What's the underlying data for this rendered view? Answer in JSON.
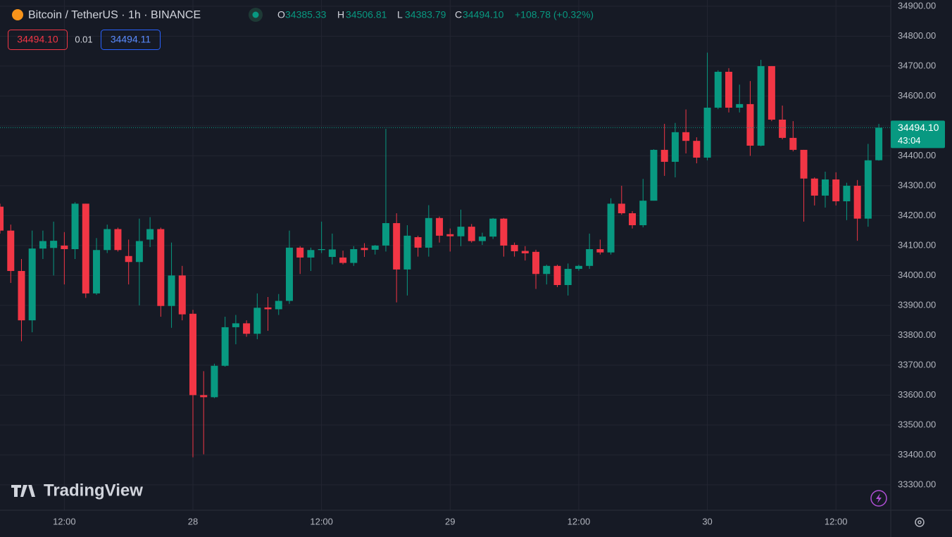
{
  "header": {
    "symbol": "Bitcoin / TetherUS · 1h · BINANCE",
    "ohlc": [
      {
        "label": "O",
        "value": "34385.33"
      },
      {
        "label": "H",
        "value": "34506.81"
      },
      {
        "label": "L",
        "value": "34383.79"
      },
      {
        "label": "C",
        "value": "34494.10"
      }
    ],
    "change": "+108.78 (+0.32%)"
  },
  "order": {
    "sell": "34494.10",
    "spread": "0.01",
    "buy": "34494.11"
  },
  "watermark": "TradingView",
  "chart_data": {
    "type": "candlestick",
    "categories": [
      null,
      null,
      null,
      null,
      null,
      null,
      "12:00",
      null,
      null,
      null,
      null,
      null,
      null,
      null,
      null,
      null,
      null,
      null,
      "28",
      null,
      null,
      null,
      null,
      null,
      null,
      null,
      null,
      null,
      null,
      null,
      "12:00",
      null,
      null,
      null,
      null,
      null,
      null,
      null,
      null,
      null,
      null,
      null,
      "29",
      null,
      null,
      null,
      null,
      null,
      null,
      null,
      null,
      null,
      null,
      null,
      "12:00",
      null,
      null,
      null,
      null,
      null,
      null,
      null,
      null,
      null,
      null,
      null,
      "30",
      null,
      null,
      null,
      null,
      null,
      null,
      null,
      null,
      null,
      null,
      null,
      "12:00",
      null,
      null,
      null,
      null
    ],
    "open": [
      34230,
      34150,
      34015,
      33850,
      34090,
      34092,
      34100,
      34088,
      34240,
      33940,
      34085,
      34155,
      34065,
      34045,
      34120,
      34155,
      33898,
      34000,
      33872,
      33600,
      33593,
      33698,
      33827,
      33840,
      33805,
      33893,
      33887,
      33915,
      34093,
      34060,
      34085,
      34062,
      34060,
      34042,
      34092,
      34086,
      34100,
      34175,
      34020,
      34128,
      34093,
      34192,
      34138,
      34131,
      34163,
      34115,
      34130,
      34190,
      34102,
      34082,
      34079,
      34005,
      34032,
      33968,
      34022,
      34032,
      34088,
      34077,
      34240,
      34208,
      34168,
      34250,
      34420,
      34380,
      34479,
      34450,
      34394,
      34561,
      34681,
      34561,
      34573,
      34434,
      34700,
      34521,
      34460,
      34420,
      34324,
      34267,
      34321,
      34248,
      34300,
      34190,
      34385.33
    ],
    "high": [
      34240,
      34170,
      34055,
      34150,
      34150,
      34180,
      34145,
      34245,
      34240,
      34125,
      34170,
      34160,
      34120,
      34190,
      34195,
      34160,
      34110,
      34032,
      33885,
      33680,
      33705,
      33862,
      33868,
      33850,
      33940,
      33928,
      33938,
      34150,
      34098,
      34093,
      34180,
      34140,
      34083,
      34098,
      34108,
      34102,
      34490,
      34208,
      34168,
      34133,
      34235,
      34197,
      34157,
      34220,
      34172,
      34143,
      34192,
      34192,
      34110,
      34098,
      34086,
      34036,
      34036,
      34040,
      34036,
      34140,
      34120,
      34258,
      34300,
      34215,
      34323,
      34422,
      34507,
      34510,
      34555,
      34462,
      34745,
      34686,
      34693,
      34638,
      34650,
      34721,
      34700,
      34568,
      34516,
      34420,
      34328,
      34347,
      34345,
      34310,
      34319,
      34440,
      34506.81
    ],
    "low": [
      34140,
      33975,
      33780,
      33810,
      34055,
      34000,
      33970,
      34055,
      33925,
      33935,
      34075,
      34080,
      33970,
      33900,
      34095,
      33862,
      33825,
      33850,
      33392,
      33402,
      33590,
      33695,
      33770,
      33795,
      33787,
      33815,
      33868,
      33905,
      34005,
      34015,
      34075,
      34037,
      34037,
      34032,
      34062,
      34070,
      34080,
      33910,
      33933,
      34063,
      34063,
      34110,
      34080,
      34098,
      34110,
      34102,
      34122,
      34063,
      34063,
      34050,
      33955,
      33970,
      33961,
      33933,
      34016,
      34022,
      34070,
      34070,
      34203,
      34157,
      34161,
      34250,
      34333,
      34328,
      34408,
      34375,
      34385,
      34556,
      34545,
      34545,
      34400,
      34432,
      34516,
      34455,
      34415,
      34180,
      34234,
      34227,
      34234,
      34185,
      34116,
      34163,
      34383.79
    ],
    "close": [
      34150,
      34015,
      33850,
      34090,
      34115,
      34116,
      34088,
      34240,
      33940,
      34085,
      34155,
      34085,
      34045,
      34115,
      34155,
      33898,
      34000,
      33870,
      33600,
      33593,
      33698,
      33827,
      33840,
      33805,
      33892,
      33887,
      33915,
      34093,
      34060,
      34085,
      34088,
      34087,
      34042,
      34088,
      34085,
      34100,
      34175,
      34020,
      34133,
      34093,
      34192,
      34133,
      34131,
      34163,
      34115,
      34130,
      34190,
      34100,
      34081,
      34074,
      34005,
      34032,
      33968,
      34022,
      34032,
      34088,
      34077,
      34240,
      34208,
      34168,
      34250,
      34420,
      34380,
      34479,
      34450,
      34394,
      34561,
      34681,
      34561,
      34573,
      34434,
      34700,
      34521,
      34460,
      34420,
      34324,
      34267,
      34321,
      34248,
      34300,
      34190,
      34385,
      34494.1
    ],
    "up_color": "#089981",
    "down_color": "#f23645",
    "ylim": [
      33215,
      34921
    ],
    "yticks": [
      {
        "value": 33300,
        "label": "33300.00"
      },
      {
        "value": 33400,
        "label": "33400.00"
      },
      {
        "value": 33500,
        "label": "33500.00"
      },
      {
        "value": 33600,
        "label": "33600.00"
      },
      {
        "value": 33700,
        "label": "33700.00"
      },
      {
        "value": 33800,
        "label": "33800.00"
      },
      {
        "value": 33900,
        "label": "33900.00"
      },
      {
        "value": 34000,
        "label": "34000.00"
      },
      {
        "value": 34100,
        "label": "34100.00"
      },
      {
        "value": 34200,
        "label": "34200.00"
      },
      {
        "value": 34300,
        "label": "34300.00"
      },
      {
        "value": 34400,
        "label": "34400.00"
      },
      {
        "value": 34500,
        "label": "34500.00"
      },
      {
        "value": 34600,
        "label": "34600.00"
      },
      {
        "value": 34700,
        "label": "34700.00"
      },
      {
        "value": 34800,
        "label": "34800.00"
      },
      {
        "value": 34900,
        "label": "34900.00"
      }
    ],
    "grid": true,
    "last_price_label": "34494.10",
    "countdown": "43:04"
  }
}
